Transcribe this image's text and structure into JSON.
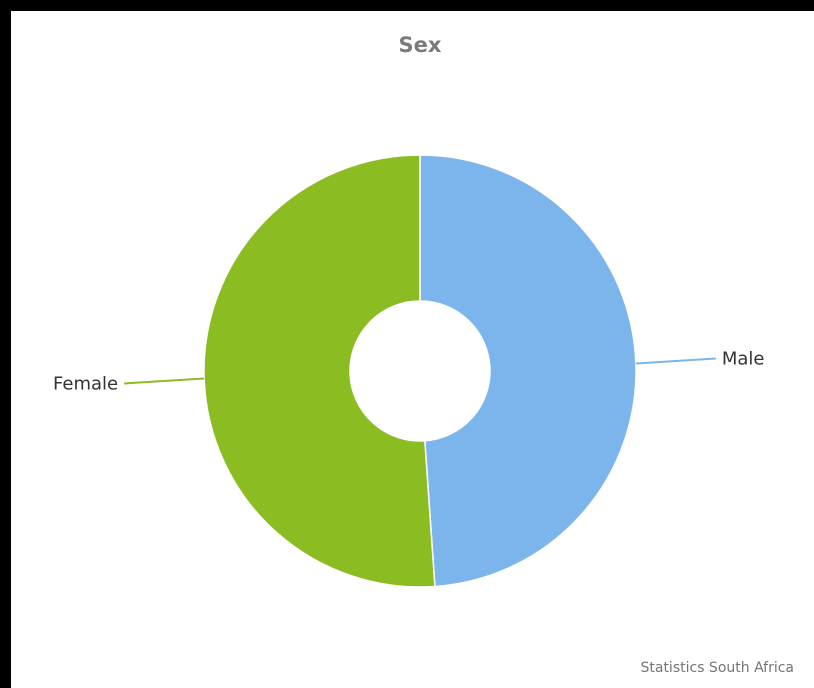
{
  "chart_data": {
    "type": "pie",
    "donut": true,
    "title": "Sex",
    "categories": [
      "Male",
      "Female"
    ],
    "values": [
      48.9,
      51.1
    ],
    "colors": [
      "#7cb5ec",
      "#8bbc21"
    ],
    "legend": "none",
    "credit": "Statistics South Africa"
  }
}
